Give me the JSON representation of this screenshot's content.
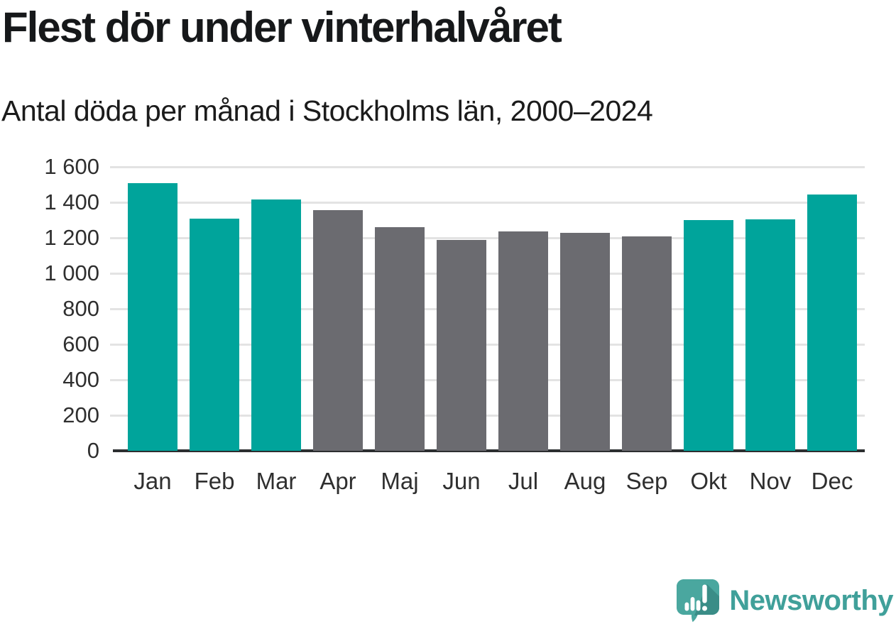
{
  "header": {
    "title": "Flest dör under vinterhalvåret",
    "subtitle": "Antal döda per månad i Stockholms län, 2000–2024"
  },
  "chart_data": {
    "type": "bar",
    "title": "Flest dör under vinterhalvåret",
    "subtitle": "Antal döda per månad i Stockholms län, 2000–2024",
    "categories": [
      "Jan",
      "Feb",
      "Mar",
      "Apr",
      "Maj",
      "Jun",
      "Jul",
      "Aug",
      "Sep",
      "Okt",
      "Nov",
      "Dec"
    ],
    "values": [
      1510,
      1310,
      1415,
      1355,
      1260,
      1190,
      1235,
      1230,
      1210,
      1300,
      1305,
      1445
    ],
    "bar_colors": [
      "#00a49b",
      "#00a49b",
      "#00a49b",
      "#6b6b70",
      "#6b6b70",
      "#6b6b70",
      "#6b6b70",
      "#6b6b70",
      "#6b6b70",
      "#00a49b",
      "#00a49b",
      "#00a49b"
    ],
    "xlabel": "",
    "ylabel": "",
    "ylim": [
      0,
      1600
    ],
    "yticks": [
      0,
      200,
      400,
      600,
      800,
      1000,
      1200,
      1400,
      1600
    ],
    "ytick_labels": [
      "0",
      "200",
      "400",
      "600",
      "800",
      "1 000",
      "1 200",
      "1 400",
      "1 600"
    ],
    "grid": true,
    "legend": "none"
  },
  "colors": {
    "winter_bar": "#00a49b",
    "summer_bar": "#6b6b70",
    "gridline": "#e3e3e3",
    "axis": "#2c2e30",
    "tick_text": "#2f2f2f",
    "heading_text": "#16181a",
    "brand_teal": "#40a09a",
    "logo_fill": "#4aa79f",
    "logo_shade": "#3a8d87"
  },
  "footer": {
    "brand": "Newsworthy"
  }
}
